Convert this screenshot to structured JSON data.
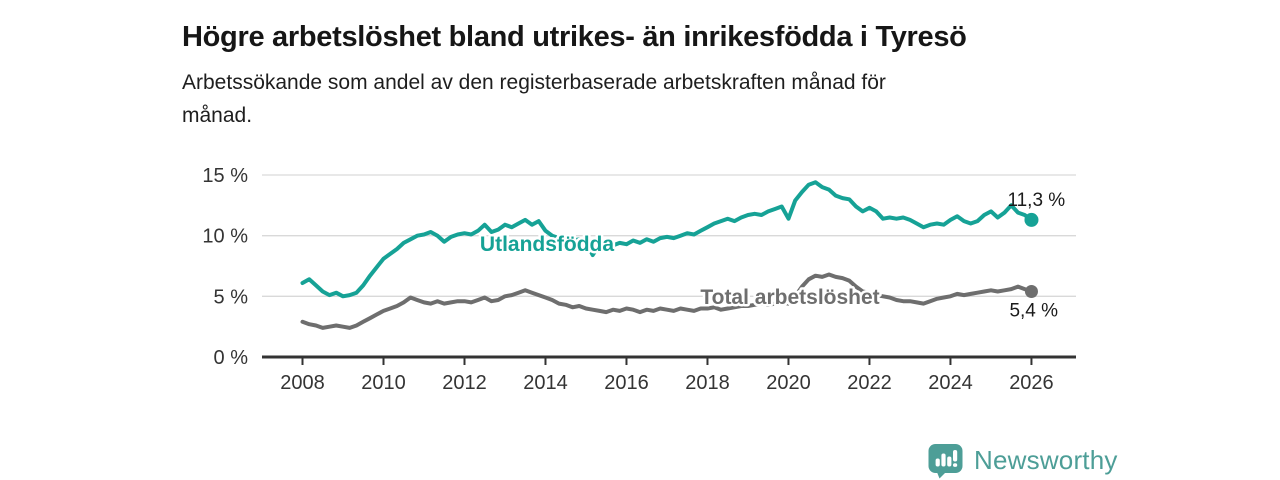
{
  "chart_data": {
    "type": "line",
    "title": "Högre arbetslöshet bland utrikes- än inrikesfödda i Tyresö",
    "subtitle_lines": [
      "Arbetssökande som andel av den registerbaserade arbetskraften månad för",
      "månad."
    ],
    "unit": "%",
    "x_range": [
      2007,
      2027.1
    ],
    "y_range": [
      0,
      15
    ],
    "grid": "horizontal",
    "legend": "inline-direct-labels",
    "y_ticks": [
      {
        "value": 0,
        "label": "0 %"
      },
      {
        "value": 5,
        "label": "5 %"
      },
      {
        "value": 10,
        "label": "10 %"
      },
      {
        "value": 15,
        "label": "15 %"
      }
    ],
    "x_ticks": [
      "2008",
      "2010",
      "2012",
      "2014",
      "2016",
      "2018",
      "2020",
      "2022",
      "2024",
      "2026"
    ],
    "series": [
      {
        "name": "Utlandsfödda",
        "color": "#16a296",
        "x_start": 2008.0,
        "x_step_years": 0.16667,
        "end_label": "11,3 %",
        "last_value": 11.3,
        "values": [
          6.1,
          6.4,
          5.9,
          5.4,
          5.1,
          5.3,
          5.0,
          5.1,
          5.3,
          5.9,
          6.7,
          7.4,
          8.1,
          8.5,
          8.9,
          9.4,
          9.7,
          10.0,
          10.1,
          10.3,
          10.0,
          9.5,
          9.9,
          10.1,
          10.2,
          10.1,
          10.4,
          10.9,
          10.3,
          10.5,
          10.9,
          10.7,
          11.0,
          11.3,
          10.9,
          11.2,
          10.4,
          10.0,
          9.8,
          9.9,
          9.6,
          9.7,
          9.5,
          8.4,
          9.3,
          9.5,
          9.2,
          9.4,
          9.3,
          9.6,
          9.4,
          9.7,
          9.5,
          9.8,
          9.9,
          9.8,
          10.0,
          10.2,
          10.1,
          10.4,
          10.7,
          11.0,
          11.2,
          11.4,
          11.2,
          11.5,
          11.7,
          11.8,
          11.7,
          12.0,
          12.2,
          12.4,
          11.4,
          12.9,
          13.6,
          14.2,
          14.4,
          14.0,
          13.8,
          13.3,
          13.1,
          13.0,
          12.4,
          12.0,
          12.3,
          12.0,
          11.4,
          11.5,
          11.4,
          11.5,
          11.3,
          11.0,
          10.7,
          10.9,
          11.0,
          10.9,
          11.3,
          11.6,
          11.2,
          11.0,
          11.2,
          11.7,
          12.0,
          11.5,
          11.9,
          12.5,
          11.9,
          11.7,
          11.3
        ]
      },
      {
        "name": "Total arbetslöshet",
        "color": "#6e6e6e",
        "x_start": 2008.0,
        "x_step_years": 0.16667,
        "end_label": "5,4 %",
        "last_value": 5.4,
        "values": [
          2.9,
          2.7,
          2.6,
          2.4,
          2.5,
          2.6,
          2.5,
          2.4,
          2.6,
          2.9,
          3.2,
          3.5,
          3.8,
          4.0,
          4.2,
          4.5,
          4.9,
          4.7,
          4.5,
          4.4,
          4.6,
          4.4,
          4.5,
          4.6,
          4.6,
          4.5,
          4.7,
          4.9,
          4.6,
          4.7,
          5.0,
          5.1,
          5.3,
          5.5,
          5.3,
          5.1,
          4.9,
          4.7,
          4.4,
          4.3,
          4.1,
          4.2,
          4.0,
          3.9,
          3.8,
          3.7,
          3.9,
          3.8,
          4.0,
          3.9,
          3.7,
          3.9,
          3.8,
          4.0,
          3.9,
          3.8,
          4.0,
          3.9,
          3.8,
          4.0,
          4.0,
          4.1,
          3.9,
          4.0,
          4.1,
          4.2,
          4.2,
          4.3,
          4.4,
          4.3,
          4.4,
          4.5,
          4.4,
          5.0,
          5.8,
          6.4,
          6.7,
          6.6,
          6.8,
          6.6,
          6.5,
          6.3,
          5.8,
          5.4,
          5.3,
          5.1,
          5.0,
          4.9,
          4.7,
          4.6,
          4.6,
          4.5,
          4.4,
          4.6,
          4.8,
          4.9,
          5.0,
          5.2,
          5.1,
          5.2,
          5.3,
          5.4,
          5.5,
          5.4,
          5.5,
          5.6,
          5.8,
          5.6,
          5.4
        ]
      }
    ]
  },
  "colors": {
    "accent_teal": "#16a296",
    "line_gray": "#6e6e6e",
    "grid": "#d9d9d9",
    "axis": "#333333",
    "text": "#1a1a1a",
    "brand_teal": "#4d9e97"
  },
  "footer": {
    "brand": "Newsworthy"
  }
}
